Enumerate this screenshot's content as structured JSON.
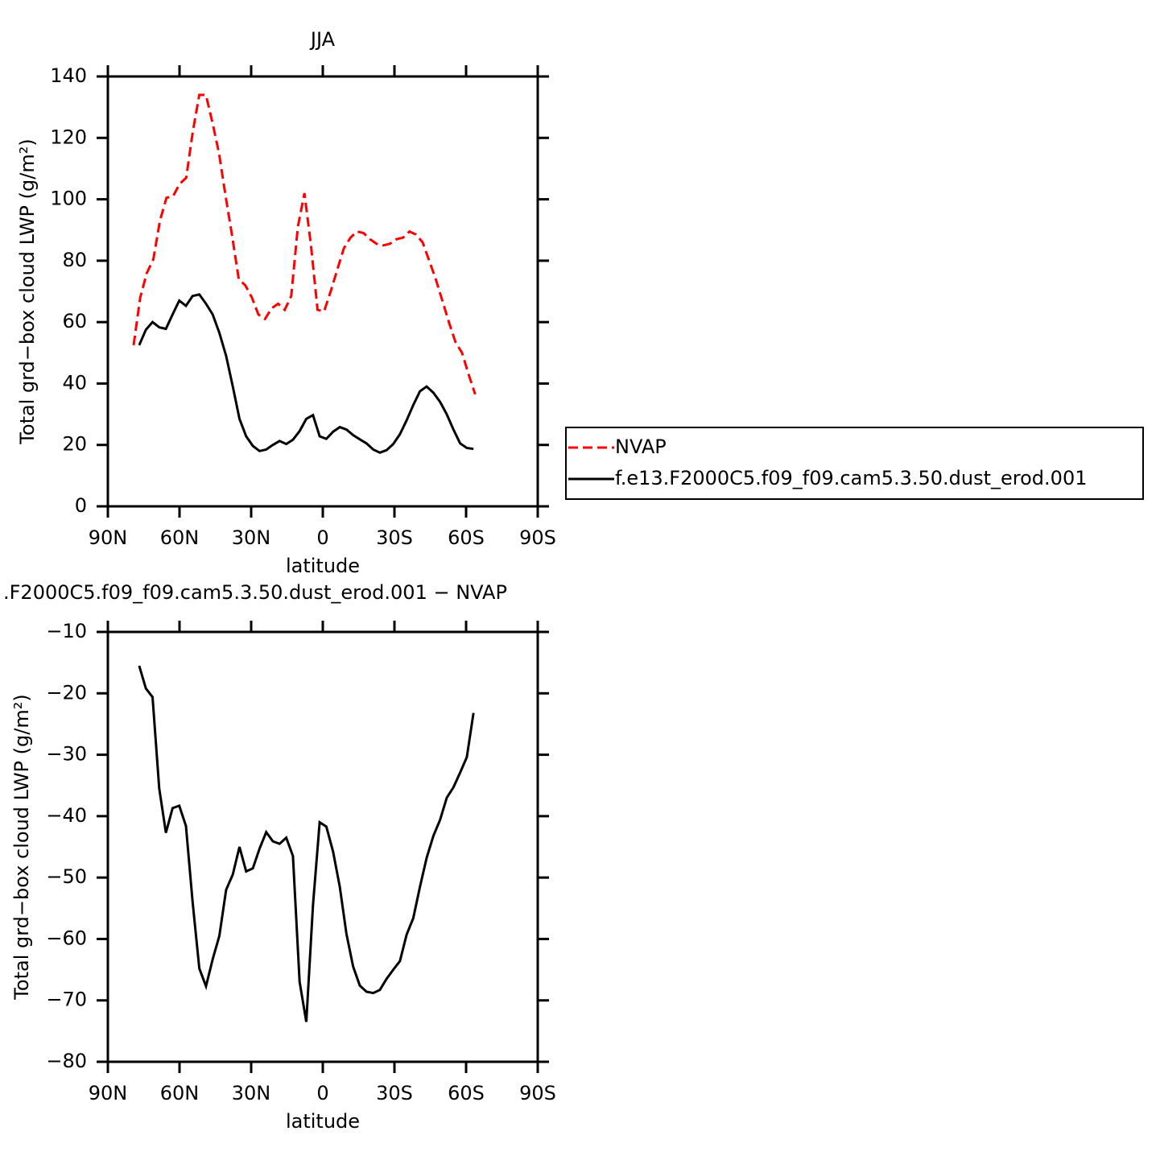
{
  "chart_data": [
    {
      "type": "line",
      "title": "JJA",
      "xlabel": "latitude",
      "ylabel": "Total grd−box cloud LWP (g/m²)",
      "xlim": [
        90,
        -90
      ],
      "ylim": [
        0,
        140
      ],
      "xticks": [
        {
          "value": 90,
          "label": "90N"
        },
        {
          "value": 60,
          "label": "60N"
        },
        {
          "value": 30,
          "label": "30N"
        },
        0,
        {
          "value": -30,
          "label": "30S"
        },
        {
          "value": -60,
          "label": "60S"
        },
        {
          "value": -90,
          "label": "90S"
        }
      ],
      "yticks": [
        0,
        20,
        40,
        60,
        80,
        100,
        120,
        140
      ],
      "legend": "right",
      "series": [
        {
          "name": "NVAP",
          "color": "#ff0000",
          "dash": true,
          "x": [
            79.2,
            76.45,
            73.7,
            70.95,
            68.2,
            65.45,
            62.7,
            59.95,
            57.2,
            54.45,
            51.7,
            48.95,
            46.2,
            43.45,
            40.7,
            37.95,
            35.2,
            32.45,
            29.7,
            26.95,
            24.2,
            21.45,
            18.7,
            15.95,
            13.2,
            10.45,
            7.7,
            4.95,
            2.2,
            -0.55,
            -3.3,
            -6.05,
            -8.8,
            -11.55,
            -14.3,
            -17.05,
            -19.8,
            -22.55,
            -25.3,
            -28.05,
            -30.8,
            -33.55,
            -36.3,
            -39.05,
            -41.8,
            -44.55,
            -47.3,
            -50.05,
            -52.8,
            -55.55,
            -58.3,
            -61.05,
            -63.8
          ],
          "values": [
            52.5,
            68,
            76,
            80.5,
            93,
            100.5,
            101,
            105,
            107,
            122,
            134,
            134,
            125,
            115,
            101,
            88,
            74,
            72,
            68,
            62.5,
            61,
            64.5,
            66,
            64,
            68.5,
            91,
            102,
            85,
            64,
            63.5,
            70,
            77,
            84,
            87.5,
            89.5,
            89,
            87,
            85.5,
            85,
            85.5,
            87,
            87.5,
            89.5,
            88.5,
            86,
            80,
            74,
            67,
            60,
            53.5,
            50,
            43,
            36.5
          ]
        },
        {
          "name": "f.e13.F2000C5.f09_f09.cam5.3.50.dust_erod.001",
          "color": "#000000",
          "dash": false,
          "x": [
            76.9,
            74.1,
            71.3,
            68.5,
            65.7,
            62.9,
            60.1,
            57.3,
            54.5,
            51.7,
            48.9,
            46.1,
            43.3,
            40.5,
            37.7,
            34.9,
            32.1,
            29.3,
            26.5,
            23.7,
            20.9,
            18.1,
            15.3,
            12.5,
            9.7,
            6.9,
            4.1,
            1.3,
            -1.5,
            -4.3,
            -7.1,
            -9.9,
            -12.7,
            -15.5,
            -18.3,
            -21.1,
            -23.9,
            -26.7,
            -29.5,
            -32.3,
            -35.1,
            -37.9,
            -40.7,
            -43.5,
            -46.3,
            -49.1,
            -51.9,
            -54.7,
            -57.5,
            -60.3,
            -63.1
          ],
          "values": [
            52.5,
            57.5,
            60,
            58.3,
            57.8,
            62.5,
            67,
            65.3,
            68.5,
            69,
            66,
            62.5,
            56.5,
            49,
            39,
            28.5,
            22.8,
            19.7,
            18,
            18.5,
            20,
            21.3,
            20.3,
            21.7,
            24.5,
            28.5,
            29.7,
            22.8,
            22,
            24.3,
            25.8,
            25,
            23.2,
            21.8,
            20.5,
            18.5,
            17.5,
            18.3,
            20.3,
            23.5,
            28,
            33,
            37.5,
            39,
            37,
            34,
            30,
            25,
            20.5,
            19,
            18.7
          ]
        }
      ]
    },
    {
      "type": "line",
      "title": ".F2000C5.f09_f09.cam5.3.50.dust_erod.001 − NVAP",
      "xlabel": "latitude",
      "ylabel": "Total grd−box cloud LWP (g/m²)",
      "xlim": [
        90,
        -90
      ],
      "ylim": [
        -80,
        -10
      ],
      "xticks": [
        {
          "value": 90,
          "label": "90N"
        },
        {
          "value": 60,
          "label": "60N"
        },
        {
          "value": 30,
          "label": "30N"
        },
        0,
        {
          "value": -30,
          "label": "30S"
        },
        {
          "value": -60,
          "label": "60S"
        },
        {
          "value": -90,
          "label": "90S"
        }
      ],
      "yticks": [
        {
          "value": -80,
          "label": "−80"
        },
        {
          "value": -70,
          "label": "−70"
        },
        {
          "value": -60,
          "label": "−60"
        },
        {
          "value": -50,
          "label": "−50"
        },
        {
          "value": -40,
          "label": "−40"
        },
        {
          "value": -30,
          "label": "−30"
        },
        {
          "value": -20,
          "label": "−20"
        },
        {
          "value": -10,
          "label": "−10"
        }
      ],
      "series": [
        {
          "color": "#000000",
          "dash": false,
          "x": [
            76.9,
            74.1,
            71.3,
            68.5,
            65.7,
            62.9,
            60.1,
            57.3,
            54.5,
            51.7,
            48.9,
            46.1,
            43.3,
            40.5,
            37.7,
            34.9,
            32.1,
            29.3,
            26.5,
            23.7,
            20.9,
            18.1,
            15.3,
            12.5,
            9.7,
            6.9,
            4.1,
            1.3,
            -1.5,
            -4.3,
            -7.1,
            -9.9,
            -12.7,
            -15.5,
            -18.3,
            -21.1,
            -23.9,
            -26.7,
            -29.5,
            -32.3,
            -35.1,
            -37.9,
            -40.7,
            -43.5,
            -46.3,
            -49.1,
            -51.9,
            -54.7,
            -57.5,
            -60.3,
            -63.1
          ],
          "values": [
            -15.5,
            -19.2,
            -20.6,
            -35.5,
            -42.7,
            -38.7,
            -38.3,
            -41.6,
            -54,
            -64.8,
            -67.7,
            -63.3,
            -59.5,
            -52,
            -49.5,
            -45,
            -49,
            -48.5,
            -45.3,
            -42.6,
            -44.1,
            -44.5,
            -43.5,
            -46.5,
            -67,
            -73.5,
            -54.5,
            -41,
            -41.7,
            -45.8,
            -51.5,
            -59.2,
            -64.5,
            -67.6,
            -68.6,
            -68.8,
            -68.3,
            -66.5,
            -65,
            -63.6,
            -59.3,
            -56.6,
            -51.5,
            -46.8,
            -43.2,
            -40.6,
            -37,
            -35.3,
            -32.9,
            -30.4,
            -23.2
          ]
        }
      ]
    }
  ]
}
